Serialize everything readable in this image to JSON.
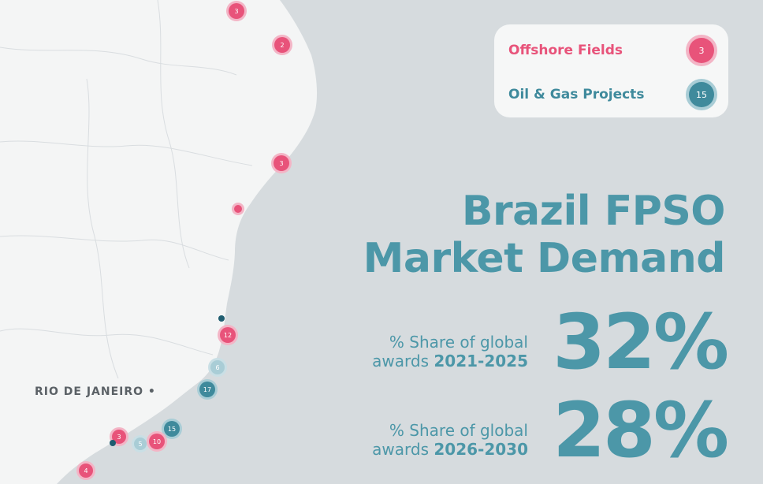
{
  "legend": {
    "offshore_label": "Offshore Fields",
    "offshore_count": "3",
    "projects_label": "Oil & Gas Projects",
    "projects_count": "15"
  },
  "colors": {
    "offshore": "#e8537a",
    "projects": "#3f8a9c",
    "text": "#4c97a8",
    "water": "#d6dbde",
    "land": "#f4f5f5"
  },
  "title": {
    "line1": "Brazil FPSO",
    "line2": "Market Demand"
  },
  "stats": [
    {
      "label_line1": "% Share of global",
      "label_prefix": "awards ",
      "period": "2021-2025",
      "value": "32%"
    },
    {
      "label_line1": "% Share of global",
      "label_prefix": "awards ",
      "period": "2026-2030",
      "value": "28%"
    }
  ],
  "map": {
    "city_label": "RIO DE JANEIRO",
    "markers": [
      {
        "label": "3",
        "kind": "offshore"
      },
      {
        "label": "2",
        "kind": "offshore"
      },
      {
        "label": "3",
        "kind": "offshore"
      },
      {
        "label": "",
        "kind": "offshore"
      },
      {
        "label": "",
        "kind": "project-dot"
      },
      {
        "label": "12",
        "kind": "offshore"
      },
      {
        "label": "6",
        "kind": "project-light"
      },
      {
        "label": "17",
        "kind": "project"
      },
      {
        "label": "15",
        "kind": "project"
      },
      {
        "label": "3",
        "kind": "offshore"
      },
      {
        "label": "5",
        "kind": "project-light"
      },
      {
        "label": "10",
        "kind": "offshore"
      },
      {
        "label": "4",
        "kind": "offshore"
      },
      {
        "label": "",
        "kind": "project-dot"
      }
    ]
  }
}
